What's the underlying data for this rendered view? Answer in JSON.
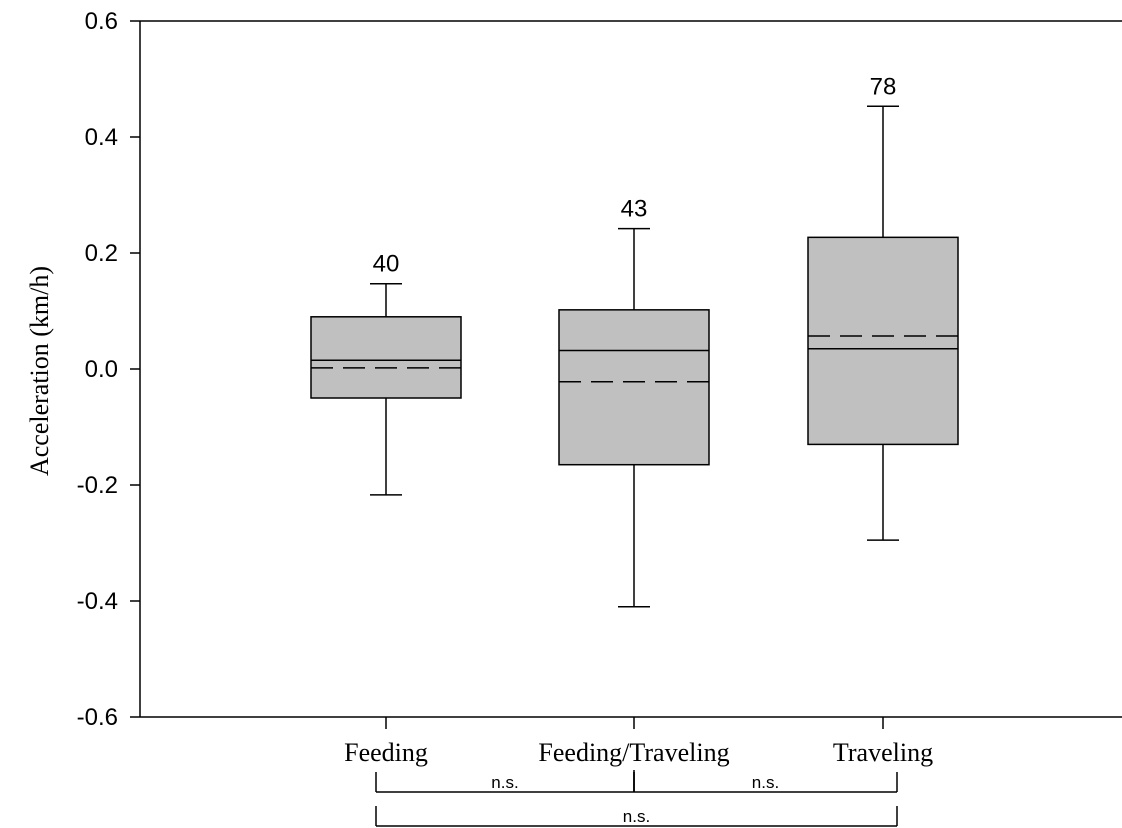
{
  "chart_data": {
    "type": "box",
    "ylabel": "Acceleration (km/h)",
    "ylim": [
      -0.6,
      0.6
    ],
    "yticks": [
      -0.6,
      -0.4,
      -0.2,
      0.0,
      0.2,
      0.4,
      0.6
    ],
    "ytick_labels": [
      "-0.6",
      "-0.4",
      "-0.2",
      "0.0",
      "0.2",
      "0.4",
      "0.6"
    ],
    "categories": [
      "Feeding",
      "Feeding/Traveling",
      "Traveling"
    ],
    "boxes": [
      {
        "category": "Feeding",
        "whisker_low": -0.217,
        "q1": -0.05,
        "median": 0.015,
        "mean": 0.002,
        "q3": 0.09,
        "whisker_high": 0.147,
        "n_label": "40"
      },
      {
        "category": "Feeding/Traveling",
        "whisker_low": -0.41,
        "q1": -0.165,
        "median": 0.032,
        "mean": -0.022,
        "q3": 0.102,
        "whisker_high": 0.242,
        "n_label": "43"
      },
      {
        "category": "Traveling",
        "whisker_low": -0.295,
        "q1": -0.13,
        "median": 0.035,
        "mean": 0.057,
        "q3": 0.227,
        "whisker_high": 0.453,
        "n_label": "78"
      }
    ],
    "box_fill": "#c0c0c0",
    "grid": false,
    "significance": [
      {
        "from": "Feeding",
        "to": "Feeding/Traveling",
        "label": "n.s."
      },
      {
        "from": "Feeding/Traveling",
        "to": "Traveling",
        "label": "n.s."
      },
      {
        "from": "Feeding",
        "to": "Traveling",
        "label": "n.s."
      }
    ]
  }
}
